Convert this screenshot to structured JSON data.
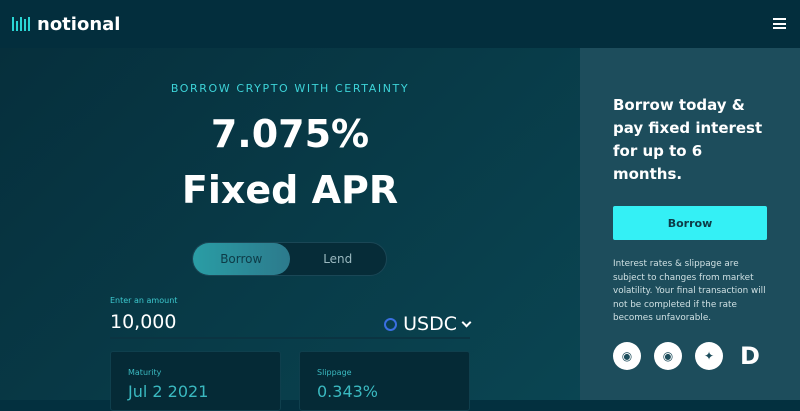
{
  "header": {
    "brand": "notional"
  },
  "hero": {
    "eyebrow": "BORROW CRYPTO WITH CERTAINTY",
    "rate": "7.075%",
    "rate_label": "Fixed APR"
  },
  "toggle": {
    "options": [
      "Borrow",
      "Lend"
    ],
    "selected": "Borrow"
  },
  "amount": {
    "label": "Enter an amount",
    "value": "10,000",
    "currency": "USDC"
  },
  "cards": [
    {
      "label": "Maturity",
      "value": "Jul 2 2021"
    },
    {
      "label": "Slippage",
      "value": "0.343%"
    }
  ],
  "side": {
    "title": "Borrow today & pay fixed interest for up to 6 months.",
    "button": "Borrow",
    "note": "Interest rates & slippage are subject to changes from market volatility. Your final transaction will not be completed if the rate becomes unfavorable.",
    "social": [
      "discord-icon",
      "github-icon",
      "twitter-icon",
      "defipulse-icon"
    ]
  },
  "colors": {
    "accent": "#34f0f5",
    "background": "#03303f",
    "side": "#1d4d5c"
  }
}
